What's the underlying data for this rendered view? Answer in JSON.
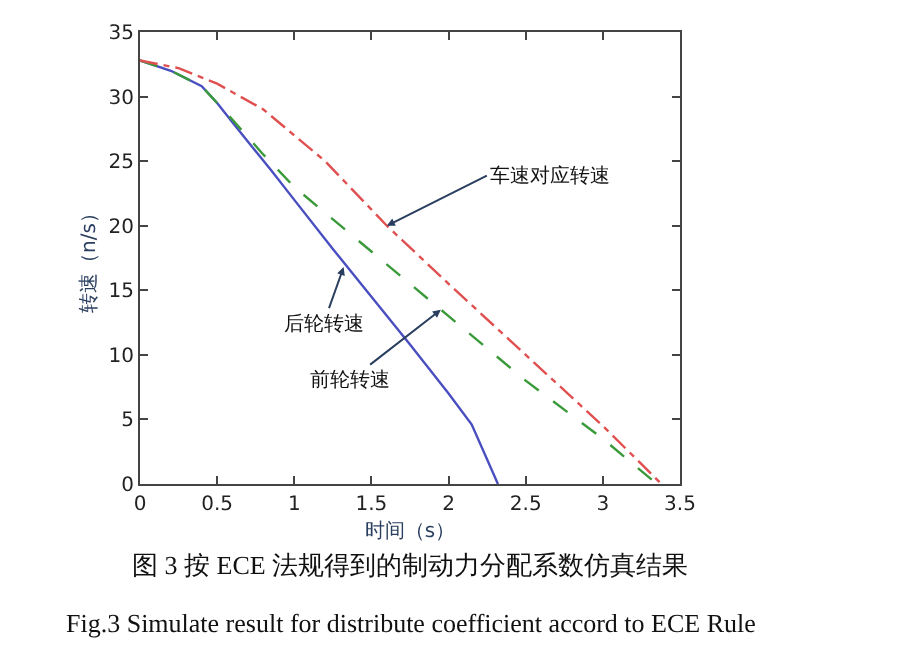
{
  "chart_data": {
    "type": "line",
    "xlabel": "时间（s）",
    "ylabel": "转速（n/s）",
    "xlim": [
      0,
      3.5
    ],
    "xticks": [
      0,
      0.5,
      1,
      1.5,
      2,
      2.5,
      3,
      3.5
    ],
    "ylim": [
      0,
      35
    ],
    "yticks": [
      0,
      5,
      10,
      15,
      20,
      25,
      30,
      35
    ],
    "series": [
      {
        "color": "#4a4fc0",
        "line_style": "solid",
        "x": [
          0,
          0.2,
          0.4,
          0.5,
          0.6,
          0.7,
          0.85,
          1,
          1.25,
          1.5,
          1.75,
          2,
          2.15,
          2.32
        ],
        "values": [
          32.8,
          32,
          30.8,
          29.5,
          28,
          26.5,
          24.3,
          22,
          18.2,
          14.5,
          10.8,
          7,
          4.6,
          0
        ]
      },
      {
        "color": "#3a9a3a",
        "line_style": "dashed",
        "x": [
          0,
          0.2,
          0.4,
          0.5,
          0.6,
          0.8,
          1,
          1.5,
          2,
          2.5,
          3,
          3.35
        ],
        "values": [
          32.8,
          32,
          30.8,
          29.5,
          28.2,
          25.5,
          23,
          18,
          13,
          8,
          3.5,
          0
        ]
      },
      {
        "color": "#e05050",
        "line_style": "dashdot",
        "x": [
          0,
          0.25,
          0.5,
          0.8,
          1.2,
          1.6,
          2,
          2.5,
          3,
          3.38
        ],
        "values": [
          32.8,
          32.2,
          31,
          29,
          25,
          20,
          15.5,
          10,
          4.5,
          0
        ]
      }
    ],
    "annotations": [
      {
        "text": "车速对应转速",
        "x": 1.6,
        "y": 20
      },
      {
        "text": "后轮转速",
        "x": 1.32,
        "y": 16.8
      },
      {
        "text": "前轮转速",
        "x": 1.95,
        "y": 13.5
      },
      "图 3 按 ECE 法规得到的制动力分配系数仿真结果",
      "Fig.3 Simulate result for distribute coefficient accord to ECE Rule"
    ]
  }
}
